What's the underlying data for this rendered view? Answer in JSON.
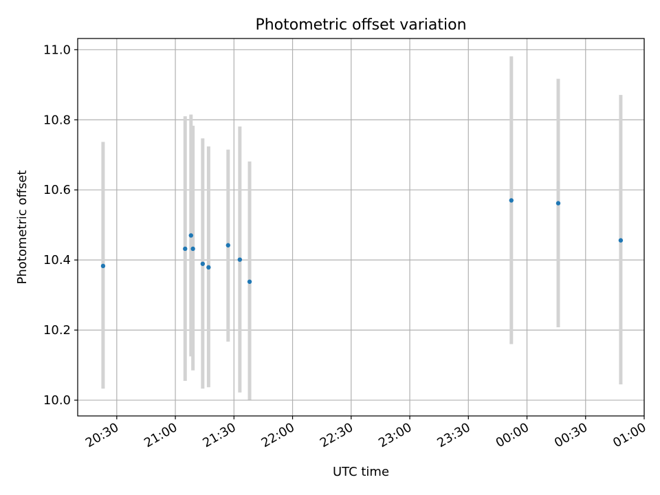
{
  "chart_data": {
    "type": "scatter",
    "title": "Photometric offset variation",
    "xlabel": "UTC time",
    "ylabel": "Photometric offset",
    "x_unit": "hours after 20:00 UTC",
    "xlim": [
      "20:10",
      "01:00"
    ],
    "ylim": [
      9.955,
      11.032
    ],
    "grid": true,
    "x_ticks": [
      "20:30",
      "21:00",
      "21:30",
      "22:00",
      "22:30",
      "23:00",
      "23:30",
      "00:00",
      "00:30",
      "01:00"
    ],
    "y_ticks": [
      "10.0",
      "10.2",
      "10.4",
      "10.6",
      "10.8",
      "11.0"
    ],
    "colors": {
      "points": "#1f77b4",
      "errorbars": "#d3d3d3",
      "grid": "#b0b0b0"
    },
    "points": [
      {
        "x": "20:23",
        "y": 10.383,
        "ylow": 10.033,
        "yhigh": 10.737
      },
      {
        "x": "21:05",
        "y": 10.432,
        "ylow": 10.055,
        "yhigh": 10.81
      },
      {
        "x": "21:08",
        "y": 10.47,
        "ylow": 10.125,
        "yhigh": 10.815
      },
      {
        "x": "21:09",
        "y": 10.432,
        "ylow": 10.085,
        "yhigh": 10.783
      },
      {
        "x": "21:14",
        "y": 10.389,
        "ylow": 10.033,
        "yhigh": 10.747
      },
      {
        "x": "21:17",
        "y": 10.379,
        "ylow": 10.037,
        "yhigh": 10.724
      },
      {
        "x": "21:27",
        "y": 10.442,
        "ylow": 10.167,
        "yhigh": 10.715
      },
      {
        "x": "21:33",
        "y": 10.401,
        "ylow": 10.022,
        "yhigh": 10.781
      },
      {
        "x": "21:38",
        "y": 10.338,
        "ylow": 10.001,
        "yhigh": 10.681
      },
      {
        "x": "23:52",
        "y": 10.57,
        "ylow": 10.16,
        "yhigh": 10.981
      },
      {
        "x": "00:16",
        "y": 10.562,
        "ylow": 10.208,
        "yhigh": 10.917
      },
      {
        "x": "00:48",
        "y": 10.456,
        "ylow": 10.045,
        "yhigh": 10.871
      }
    ]
  }
}
